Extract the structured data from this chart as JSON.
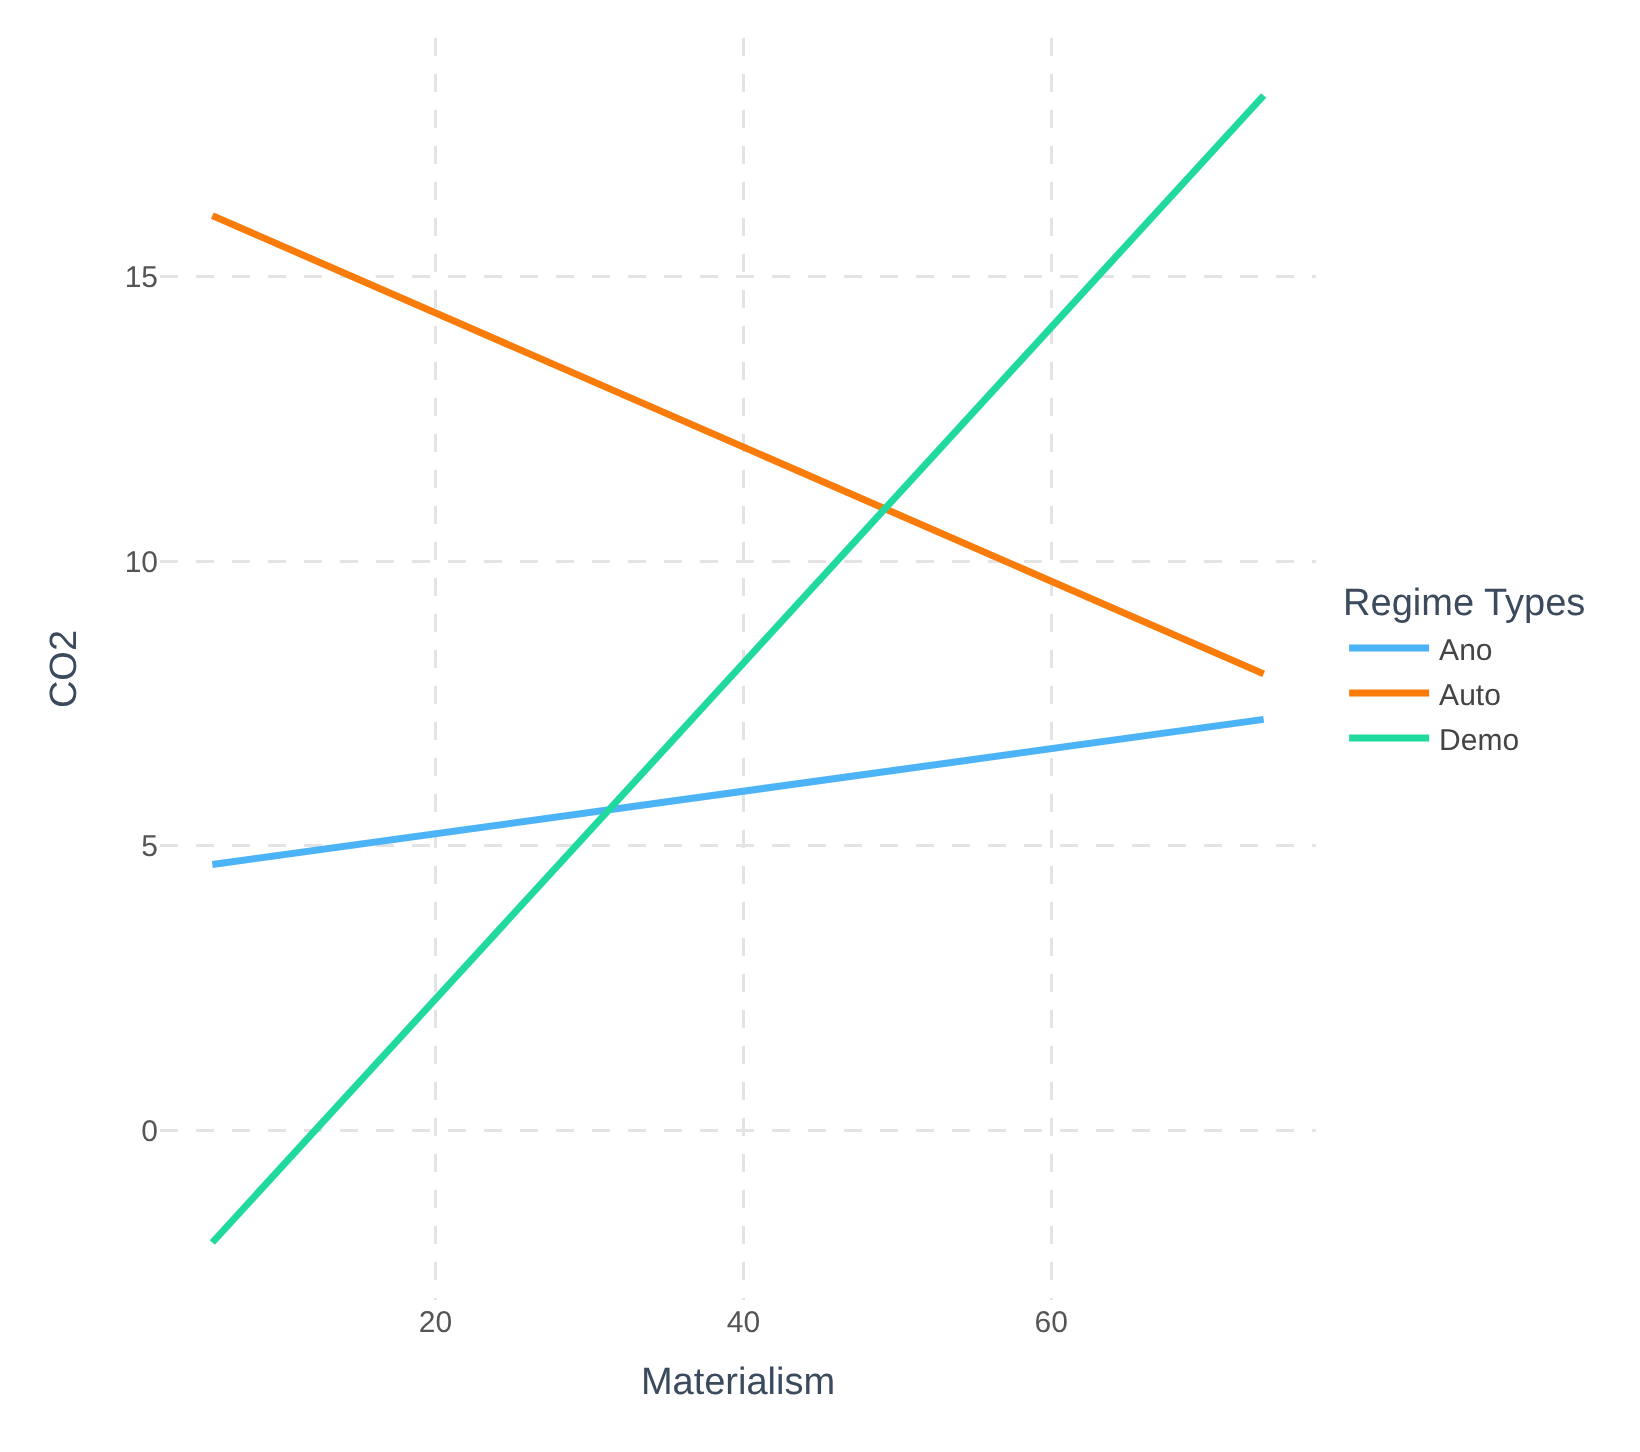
{
  "chart_data": {
    "type": "line",
    "xlabel": "Materialism",
    "ylabel": "CO2",
    "legend_title": "Regime Types",
    "x": [
      5.5,
      73.8
    ],
    "series": [
      {
        "name": "Ano",
        "color": "#4db3f7",
        "values": [
          4.67,
          7.22
        ]
      },
      {
        "name": "Auto",
        "color": "#f97c0a",
        "values": [
          16.07,
          8.02
        ]
      },
      {
        "name": "Demo",
        "color": "#1fd99f",
        "values": [
          -1.97,
          18.18
        ]
      }
    ],
    "xlim": [
      2.1,
      77.2
    ],
    "xticks": [
      20,
      40,
      60
    ],
    "ylim": [
      -2.98,
      19.19
    ],
    "yticks": [
      0,
      5,
      10,
      15
    ],
    "grid": true,
    "legend": "right",
    "marker": "none",
    "line_style": "solid"
  }
}
